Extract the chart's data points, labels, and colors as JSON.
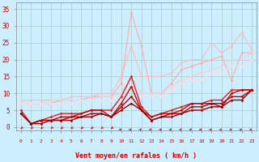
{
  "bg_color": "#cceeff",
  "grid_color": "#aacccc",
  "xlabel": "Vent moyen/en rafales ( km/h )",
  "xlabel_color": "#cc0000",
  "tick_label_color": "#cc0000",
  "axis_color": "#cc0000",
  "x_ticks": [
    0,
    1,
    2,
    3,
    4,
    5,
    6,
    7,
    8,
    9,
    10,
    11,
    12,
    13,
    14,
    15,
    16,
    17,
    18,
    19,
    20,
    21,
    22,
    23
  ],
  "ylim": [
    -1,
    37
  ],
  "xlim": [
    -0.5,
    23.5
  ],
  "yticks": [
    0,
    5,
    10,
    15,
    20,
    25,
    30,
    35
  ],
  "lines": [
    {
      "color": "#ffaaaa",
      "linewidth": 0.8,
      "marker": "D",
      "markersize": 1.5,
      "data_x": [
        0,
        1,
        2,
        3,
        4,
        5,
        6,
        7,
        8,
        9,
        10,
        11,
        12,
        13,
        14,
        15,
        16,
        17,
        18,
        19,
        20,
        21,
        22,
        23
      ],
      "data_y": [
        7,
        7,
        7,
        7,
        8,
        8,
        8,
        9,
        9,
        9,
        13,
        34,
        24,
        10,
        10,
        13,
        17,
        18,
        19,
        20,
        21,
        14,
        22,
        22
      ]
    },
    {
      "color": "#ffbbbb",
      "linewidth": 0.8,
      "marker": "D",
      "markersize": 1.5,
      "data_x": [
        0,
        1,
        2,
        3,
        4,
        5,
        6,
        7,
        8,
        9,
        10,
        11,
        12,
        13,
        14,
        15,
        16,
        17,
        18,
        19,
        20,
        21,
        22,
        23
      ],
      "data_y": [
        8,
        8,
        8,
        8,
        8,
        9,
        9,
        9,
        10,
        10,
        15,
        24,
        15,
        15,
        15,
        16,
        19,
        20,
        20,
        25,
        22,
        24,
        28,
        23
      ]
    },
    {
      "color": "#ffcccc",
      "linewidth": 0.8,
      "marker": "D",
      "markersize": 1.5,
      "data_x": [
        0,
        1,
        2,
        3,
        4,
        5,
        6,
        7,
        8,
        9,
        10,
        11,
        12,
        13,
        14,
        15,
        16,
        17,
        18,
        19,
        20,
        21,
        22,
        23
      ],
      "data_y": [
        8,
        7,
        7,
        8,
        8,
        8,
        8,
        8,
        9,
        9,
        10,
        15,
        10,
        10,
        10,
        12,
        14,
        15,
        16,
        17,
        18,
        20,
        20,
        22
      ]
    },
    {
      "color": "#ffdddd",
      "linewidth": 0.8,
      "marker": "D",
      "markersize": 1.5,
      "data_x": [
        0,
        1,
        2,
        3,
        4,
        5,
        6,
        7,
        8,
        9,
        10,
        11,
        12,
        13,
        14,
        15,
        16,
        17,
        18,
        19,
        20,
        21,
        22,
        23
      ],
      "data_y": [
        7,
        7,
        7,
        7,
        7,
        7,
        8,
        8,
        8,
        8,
        9,
        12,
        9,
        9,
        9,
        11,
        13,
        14,
        14,
        16,
        16,
        18,
        18,
        20
      ]
    },
    {
      "color": "#dd2222",
      "linewidth": 1.0,
      "marker": "D",
      "markersize": 1.5,
      "data_x": [
        0,
        1,
        2,
        3,
        4,
        5,
        6,
        7,
        8,
        9,
        10,
        11,
        12,
        13,
        14,
        15,
        16,
        17,
        18,
        19,
        20,
        21,
        22,
        23
      ],
      "data_y": [
        5,
        1,
        2,
        3,
        4,
        4,
        4,
        5,
        5,
        5,
        9,
        15,
        6,
        3,
        4,
        5,
        6,
        7,
        7,
        8,
        8,
        11,
        11,
        11
      ]
    },
    {
      "color": "#cc0000",
      "linewidth": 1.0,
      "marker": "D",
      "markersize": 1.5,
      "data_x": [
        0,
        1,
        2,
        3,
        4,
        5,
        6,
        7,
        8,
        9,
        10,
        11,
        12,
        13,
        14,
        15,
        16,
        17,
        18,
        19,
        20,
        21,
        22,
        23
      ],
      "data_y": [
        4,
        1,
        2,
        2,
        3,
        3,
        4,
        5,
        5,
        3,
        7,
        12,
        5,
        3,
        4,
        4,
        5,
        7,
        7,
        7,
        6,
        10,
        11,
        11
      ]
    },
    {
      "color": "#bb0000",
      "linewidth": 1.0,
      "marker": "D",
      "markersize": 1.5,
      "data_x": [
        0,
        1,
        2,
        3,
        4,
        5,
        6,
        7,
        8,
        9,
        10,
        11,
        12,
        13,
        14,
        15,
        16,
        17,
        18,
        19,
        20,
        21,
        22,
        23
      ],
      "data_y": [
        4,
        1,
        2,
        2,
        2,
        3,
        3,
        4,
        4,
        3,
        6,
        9,
        5,
        2,
        3,
        4,
        4,
        6,
        6,
        7,
        7,
        9,
        9,
        11
      ]
    },
    {
      "color": "#990000",
      "linewidth": 1.0,
      "marker": "D",
      "markersize": 1.5,
      "data_x": [
        0,
        1,
        2,
        3,
        4,
        5,
        6,
        7,
        8,
        9,
        10,
        11,
        12,
        13,
        14,
        15,
        16,
        17,
        18,
        19,
        20,
        21,
        22,
        23
      ],
      "data_y": [
        4,
        1,
        1,
        2,
        2,
        2,
        3,
        3,
        4,
        3,
        5,
        7,
        5,
        2,
        3,
        3,
        4,
        5,
        5,
        6,
        6,
        8,
        8,
        11
      ]
    }
  ],
  "arrows": {
    "x": [
      0,
      1,
      2,
      3,
      4,
      5,
      6,
      7,
      8,
      9,
      10,
      11,
      12,
      13,
      14,
      15,
      16,
      17,
      18,
      19,
      20,
      21,
      22,
      23
    ],
    "directions_dx": [
      -0.18,
      -0.18,
      -0.18,
      -0.18,
      -0.18,
      -0.18,
      -0.18,
      -0.18,
      -0.18,
      -0.18,
      0.18,
      0.18,
      0.18,
      0.18,
      0.18,
      0.18,
      0.18,
      0.18,
      0.18,
      0.18,
      0.18,
      0.18,
      0.18,
      0.18
    ],
    "directions_dy": [
      -0.5,
      -0.5,
      -0.5,
      -0.5,
      -0.5,
      -0.5,
      -0.5,
      -0.5,
      -0.5,
      -0.5,
      0.5,
      0.5,
      0.5,
      0.5,
      0.5,
      0.5,
      0.5,
      0.5,
      0.5,
      0.5,
      0.5,
      0.5,
      0.5,
      0.5
    ],
    "color": "#cc0000"
  }
}
